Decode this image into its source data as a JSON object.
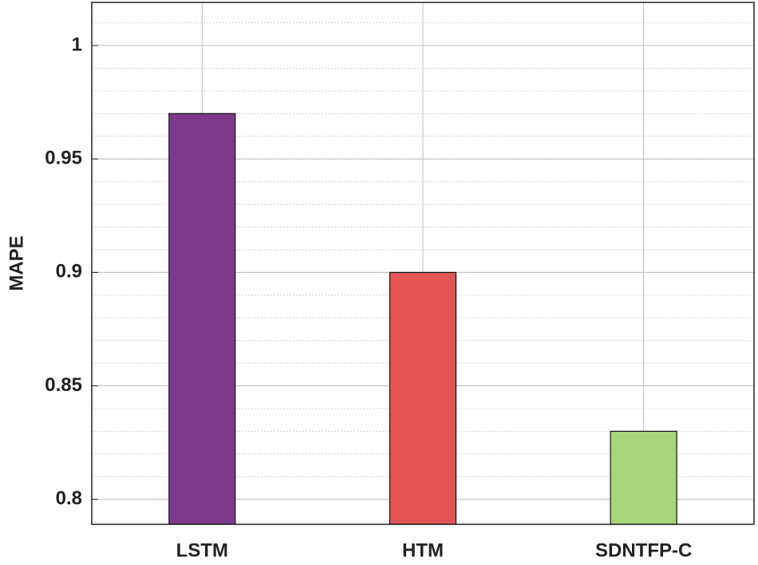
{
  "chart_data": {
    "type": "bar",
    "y_label": "MAPE",
    "categories": [
      "LSTM",
      "HTM",
      "SDNTFP-C"
    ],
    "values": [
      0.97,
      0.9,
      0.83
    ],
    "colors": [
      "#7d3a8b",
      "#e25554",
      "#a8d47a"
    ],
    "ylim": [
      0.789,
      1.019
    ],
    "yticks": [
      0.8,
      0.85,
      0.9,
      0.95,
      1
    ],
    "grid": true,
    "minor_grid": true
  }
}
